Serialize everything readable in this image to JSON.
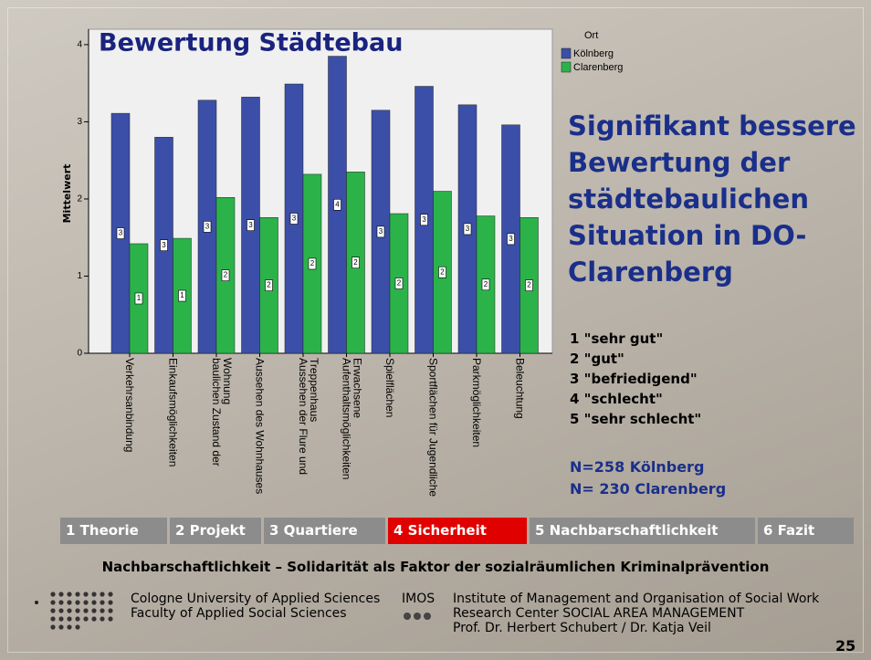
{
  "chart_data": {
    "type": "bar",
    "title": "Bewertung Städtebau",
    "y_label": "Mittelwert",
    "legend_title": "Ort",
    "categories": [
      "Verkehrsanbindung",
      "Einkaufsmöglichkeiten",
      "baulichen Zustand der Wohnung",
      "Aussehen des Wohnhauses",
      "Aussehen der Flure und Treppenhaus",
      "Aufenthaltsmöglichkeiten Erwachsene",
      "Spielflächen",
      "Sportflächen für Jugendliche",
      "Parkmöglichkeiten",
      "Beleuchtung"
    ],
    "series": [
      {
        "name": "Kölnberg",
        "color": "#3b4fa8",
        "values": [
          3.11,
          2.8,
          3.28,
          3.32,
          3.49,
          3.85,
          3.15,
          3.46,
          3.22,
          2.96
        ],
        "value_labels": [
          "3",
          "3",
          "3",
          "3",
          "3",
          "4",
          "3",
          "3",
          "3",
          "3"
        ]
      },
      {
        "name": "Clarenberg",
        "color": "#2bb34a",
        "values": [
          1.42,
          1.49,
          2.02,
          1.76,
          2.32,
          2.35,
          1.81,
          2.1,
          1.78,
          1.76
        ],
        "value_labels": [
          "1",
          "1",
          "2",
          "2",
          "2",
          "2",
          "2",
          "2",
          "2",
          "2"
        ]
      }
    ],
    "ylim": [
      0,
      4.2
    ],
    "yticks": [
      0,
      1,
      2,
      3,
      4
    ]
  },
  "slide": {
    "headline": [
      "Signifikant bessere",
      "Bewertung der",
      "städtebaulichen",
      "Situation  in DO-",
      "Clarenberg"
    ],
    "scale": [
      "1 \"sehr gut\"",
      "2 \"gut\"",
      "3 \"befriedigend\"",
      "4 \"schlecht\"",
      "5 \"sehr schlecht\""
    ],
    "sample": [
      "N=258 Kölnberg",
      "N= 230 Clarenberg"
    ],
    "nav": [
      {
        "label": "1 Theorie",
        "color": "#8c8c8c"
      },
      {
        "label": "2 Projekt",
        "color": "#8c8c8c"
      },
      {
        "label": "3 Quartiere",
        "color": "#8c8c8c"
      },
      {
        "label": "4  Sicherheit",
        "color": "#e00000"
      },
      {
        "label": "5  Nachbarschaftlichkeit",
        "color": "#8c8c8c"
      },
      {
        "label": "6 Fazit",
        "color": "#8c8c8c"
      }
    ],
    "subtitle": "Nachbarschaftlichkeit – Solidarität als Faktor der sozialräumlichen Kriminalprävention",
    "footer_left": [
      "Cologne University of Applied Sciences",
      "Faculty of Applied Social Sciences"
    ],
    "footer_imos": "IMOS",
    "footer_right": [
      "Institute of Management and Organisation of Social Work",
      "Research Center   SOCIAL AREA  MANAGEMENT",
      "Prof. Dr. Herbert Schubert / Dr. Katja Veil"
    ],
    "page_number": "25"
  }
}
